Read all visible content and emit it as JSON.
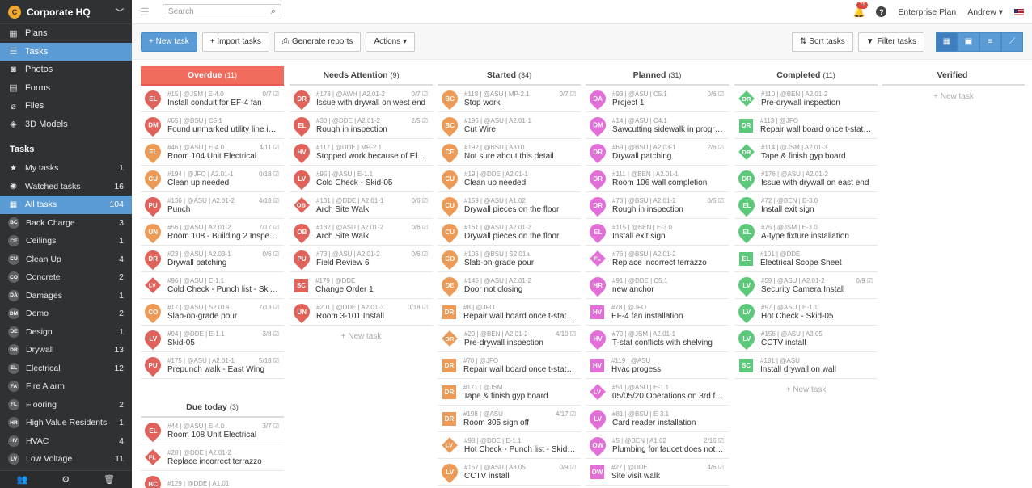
{
  "sidebar": {
    "org_name": "Corporate HQ",
    "org_initial": "C",
    "nav": [
      {
        "label": "Plans",
        "icon": "plans-icon",
        "glyph": "▦"
      },
      {
        "label": "Tasks",
        "icon": "tasks-icon",
        "glyph": "☰",
        "active": true
      },
      {
        "label": "Photos",
        "icon": "camera-icon",
        "glyph": "◙"
      },
      {
        "label": "Forms",
        "icon": "forms-icon",
        "glyph": "▤"
      },
      {
        "label": "Files",
        "icon": "paperclip-icon",
        "glyph": "⌀"
      },
      {
        "label": "3D Models",
        "icon": "cube-icon",
        "glyph": "◈"
      }
    ],
    "tasks_heading": "Tasks",
    "task_items": [
      {
        "label": "My tasks",
        "count": "1",
        "glyph": "★"
      },
      {
        "label": "Watched tasks",
        "count": "16",
        "glyph": "◉"
      },
      {
        "label": "All tasks",
        "count": "104",
        "glyph": "▦",
        "active": true
      },
      {
        "abbr": "BC",
        "label": "Back Charge",
        "count": "3"
      },
      {
        "abbr": "CE",
        "label": "Ceilings",
        "count": "1"
      },
      {
        "abbr": "CU",
        "label": "Clean Up",
        "count": "4"
      },
      {
        "abbr": "CO",
        "label": "Concrete",
        "count": "2"
      },
      {
        "abbr": "DA",
        "label": "Damages",
        "count": "1"
      },
      {
        "abbr": "DM",
        "label": "Demo",
        "count": "2"
      },
      {
        "abbr": "DE",
        "label": "Design",
        "count": "1"
      },
      {
        "abbr": "DR",
        "label": "Drywall",
        "count": "13"
      },
      {
        "abbr": "EL",
        "label": "Electrical",
        "count": "12"
      },
      {
        "abbr": "FA",
        "label": "Fire Alarm",
        "count": ""
      },
      {
        "abbr": "FL",
        "label": "Flooring",
        "count": "2"
      },
      {
        "abbr": "HR",
        "label": "High Value Residents",
        "count": "1"
      },
      {
        "abbr": "HV",
        "label": "HVAC",
        "count": "4"
      },
      {
        "abbr": "LV",
        "label": "Low Voltage",
        "count": "11"
      }
    ]
  },
  "topbar": {
    "search_placeholder": "Search",
    "notifications": "75",
    "plan": "Enterprise Plan",
    "user": "Andrew"
  },
  "toolbar": {
    "new_task": "+ New task",
    "import": "+ Import tasks",
    "reports": "Generate reports",
    "actions": "Actions ▾",
    "sort": "⇅ Sort tasks",
    "filter": "Filter tasks"
  },
  "colors": {
    "EL": "#e0625a",
    "DM": "#e0625a",
    "CU": "#ec9a55",
    "PU": "#e0625a",
    "UN": "#ec9a55",
    "DR": "#e0625a",
    "LV": "#e0625a",
    "CO": "#ec9a55",
    "FL": "#e0625a",
    "HV": "#e0625a",
    "OB": "#e0625a",
    "SC": "#e0625a",
    "BC": "#ec9a55",
    "CE": "#ec9a55",
    "DE": "#ec9a55",
    "DA": "#e26fd8",
    "HR": "#e26fd8",
    "OW": "#e26fd8",
    "LV2": "#e26fd8"
  },
  "columns": [
    {
      "title": "Overdue",
      "count": "(11)",
      "cards": [
        {
          "abbr": "EL",
          "shape": "pin",
          "color": "#e0625a",
          "meta": "#15 | @JSM | E-4.0",
          "prog": "0/7",
          "title": "Install conduit for EF-4 fan"
        },
        {
          "abbr": "DM",
          "shape": "pin",
          "color": "#e0625a",
          "meta": "#65 | @BSU | C5.1",
          "prog": "",
          "title": "Found unmarked utility line in road"
        },
        {
          "abbr": "EL",
          "shape": "pin",
          "color": "#ec9a55",
          "meta": "#46 | @ASU | E-4.0",
          "prog": "4/11",
          "title": "Room 104 Unit Electrical"
        },
        {
          "abbr": "CU",
          "shape": "pin",
          "color": "#ec9a55",
          "meta": "#194 | @JFO | A2.01-1",
          "prog": "0/18",
          "title": "Clean up needed"
        },
        {
          "abbr": "PU",
          "shape": "pin",
          "color": "#e0625a",
          "meta": "#136 | @ASU | A2.01-2",
          "prog": "4/18",
          "title": "Punch"
        },
        {
          "abbr": "UN",
          "shape": "pin",
          "color": "#ec9a55",
          "meta": "#56 | @ASU | A2.01-2",
          "prog": "7/17",
          "title": "Room 108 - Building 2 Inspection"
        },
        {
          "abbr": "DR",
          "shape": "pin",
          "color": "#e0625a",
          "meta": "#23 | @ASU | A2.03-1",
          "prog": "0/6",
          "title": "Drywall patching"
        },
        {
          "abbr": "LV",
          "shape": "dia",
          "color": "#e0625a",
          "meta": "#96 | @ASU | E-1.1",
          "prog": "",
          "title": "Cold Check - Punch list - Skid-05"
        },
        {
          "abbr": "CO",
          "shape": "pin",
          "color": "#ec9a55",
          "meta": "#17 | @ASU | S2.01a",
          "prog": "7/13",
          "title": "Slab-on-grade pour"
        },
        {
          "abbr": "LV",
          "shape": "pin",
          "color": "#e0625a",
          "meta": "#94 | @DDE | E-1.1",
          "prog": "3/8",
          "title": "Skid-05"
        },
        {
          "abbr": "PU",
          "shape": "pin",
          "color": "#e0625a",
          "meta": "#175 | @ASU | A2.01-1",
          "prog": "5/18",
          "title": "Prepunch walk - East Wing"
        }
      ]
    },
    {
      "title": "Needs Attention",
      "count": "(9)",
      "cards": [
        {
          "abbr": "DR",
          "shape": "pin",
          "color": "#e0625a",
          "meta": "#178 | @AWH | A2.01-2",
          "prog": "0/7",
          "title": "Issue with drywall on west end"
        },
        {
          "abbr": "EL",
          "shape": "pin",
          "color": "#e0625a",
          "meta": "#30 | @DDE | A2.01-2",
          "prog": "2/5",
          "title": "Rough in inspection"
        },
        {
          "abbr": "HV",
          "shape": "pin",
          "color": "#e0625a",
          "meta": "#117 | @DDE | MP-2.1",
          "prog": "",
          "title": "Stopped work because of Electric..."
        },
        {
          "abbr": "LV",
          "shape": "pin",
          "color": "#e0625a",
          "meta": "#95 | @ASU | E-1.1",
          "prog": "",
          "title": "Cold Check - Skid-05"
        },
        {
          "abbr": "OB",
          "shape": "dia",
          "color": "#e0625a",
          "meta": "#131 | @DDE | A2.01-1",
          "prog": "0/6",
          "title": "Arch Site Walk"
        },
        {
          "abbr": "OB",
          "shape": "pin",
          "color": "#e0625a",
          "meta": "#132 | @ASU | A2.01-2",
          "prog": "0/6",
          "title": "Arch Site Walk"
        },
        {
          "abbr": "PU",
          "shape": "pin",
          "color": "#e0625a",
          "meta": "#73 | @ASU | A2.01-2",
          "prog": "0/6",
          "title": "Field Review 6"
        },
        {
          "abbr": "SC",
          "shape": "sq",
          "color": "#e0625a",
          "meta": "#179 | @DDE",
          "prog": "",
          "title": "Change Order 1"
        },
        {
          "abbr": "UN",
          "shape": "pin",
          "color": "#e0625a",
          "meta": "#201 | @DDE | A2.01-3",
          "prog": "0/18",
          "title": "Room 3-101 Install"
        }
      ]
    },
    {
      "title": "Started",
      "count": "(34)",
      "cards": [
        {
          "abbr": "BC",
          "shape": "pin",
          "color": "#ec9a55",
          "meta": "#118 | @ASU | MP-2.1",
          "prog": "0/7",
          "title": "Stop work"
        },
        {
          "abbr": "BC",
          "shape": "pin",
          "color": "#ec9a55",
          "meta": "#196 | @ASU | A2.01-1",
          "prog": "",
          "title": "Cut Wire"
        },
        {
          "abbr": "CE",
          "shape": "pin",
          "color": "#ec9a55",
          "meta": "#192 | @BSU | A3.01",
          "prog": "",
          "title": "Not sure about this detail"
        },
        {
          "abbr": "CU",
          "shape": "pin",
          "color": "#ec9a55",
          "meta": "#19 | @DDE | A2.01-1",
          "prog": "",
          "title": "Clean up needed"
        },
        {
          "abbr": "CU",
          "shape": "pin",
          "color": "#ec9a55",
          "meta": "#159 | @ASU | A1.02",
          "prog": "",
          "title": "Drywall pieces on the floor"
        },
        {
          "abbr": "CU",
          "shape": "pin",
          "color": "#ec9a55",
          "meta": "#161 | @ASU | A2.01-2",
          "prog": "",
          "title": "Drywall pieces on the floor"
        },
        {
          "abbr": "CO",
          "shape": "pin",
          "color": "#ec9a55",
          "meta": "#106 | @BSU | S2.01a",
          "prog": "",
          "title": "Slab-on-grade pour"
        },
        {
          "abbr": "DE",
          "shape": "pin",
          "color": "#ec9a55",
          "meta": "#145 | @ASU | A2.01-2",
          "prog": "",
          "title": "Door not closing"
        },
        {
          "abbr": "DR",
          "shape": "sq",
          "color": "#ec9a55",
          "meta": "#8 | @JFO",
          "prog": "",
          "title": "Repair wall board once t-stat is m..."
        },
        {
          "abbr": "DR",
          "shape": "dia",
          "color": "#ec9a55",
          "meta": "#29 | @BEN | A2.01-2",
          "prog": "4/10",
          "title": "Pre-drywall inspection"
        },
        {
          "abbr": "DR",
          "shape": "sq",
          "color": "#ec9a55",
          "meta": "#70 | @JFO",
          "prog": "",
          "title": "Repair wall board once t-stat is m..."
        },
        {
          "abbr": "DR",
          "shape": "sq",
          "color": "#ec9a55",
          "meta": "#171 | @JSM",
          "prog": "",
          "title": "Tape & finish gyp board"
        },
        {
          "abbr": "DR",
          "shape": "sq",
          "color": "#ec9a55",
          "meta": "#198 | @ASU",
          "prog": "4/17",
          "title": "Room 305 sign off"
        },
        {
          "abbr": "LV",
          "shape": "dia",
          "color": "#ec9a55",
          "meta": "#98 | @DDE | E-1.1",
          "prog": "",
          "title": "Hot Check - Punch list - Skid-05"
        },
        {
          "abbr": "LV",
          "shape": "pin",
          "color": "#ec9a55",
          "meta": "#157 | @ASU | A3.05",
          "prog": "0/9",
          "title": "CCTV install"
        }
      ]
    },
    {
      "title": "Planned",
      "count": "(31)",
      "cards": [
        {
          "abbr": "DA",
          "shape": "pin",
          "color": "#e26fd8",
          "meta": "#93 | @ASU | C5.1",
          "prog": "0/6",
          "title": "Project 1"
        },
        {
          "abbr": "DM",
          "shape": "pin",
          "color": "#e26fd8",
          "meta": "#14 | @ASU | C4.1",
          "prog": "",
          "title": "Sawcutting sidewalk in progress"
        },
        {
          "abbr": "DR",
          "shape": "pin",
          "color": "#e26fd8",
          "meta": "#69 | @BSU | A2.03-1",
          "prog": "2/6",
          "title": "Drywall patching"
        },
        {
          "abbr": "DR",
          "shape": "pin",
          "color": "#e26fd8",
          "meta": "#111 | @BEN | A2.01-1",
          "prog": "",
          "title": "Room 106 wall completion"
        },
        {
          "abbr": "DR",
          "shape": "pin",
          "color": "#e26fd8",
          "meta": "#73 | @BSU | A2.01-2",
          "prog": "0/5",
          "title": "Rough in inspection"
        },
        {
          "abbr": "EL",
          "shape": "pin",
          "color": "#e26fd8",
          "meta": "#115 | @BEN | E-3.0",
          "prog": "",
          "title": "Install exit sign"
        },
        {
          "abbr": "FL",
          "shape": "dia",
          "color": "#e26fd8",
          "meta": "#76 | @BSU | A2.01-2",
          "prog": "",
          "title": "Replace incorrect terrazzo"
        },
        {
          "abbr": "HR",
          "shape": "pin",
          "color": "#e26fd8",
          "meta": "#91 | @DDE | C5.1",
          "prog": "",
          "title": "new anchor"
        },
        {
          "abbr": "HV",
          "shape": "sq",
          "color": "#e26fd8",
          "meta": "#78 | @JFO",
          "prog": "",
          "title": "EF-4 fan installation"
        },
        {
          "abbr": "HV",
          "shape": "pin",
          "color": "#e26fd8",
          "meta": "#79 | @JSM | A2.01-1",
          "prog": "",
          "title": "T-stat conflicts with shelving"
        },
        {
          "abbr": "HV",
          "shape": "sq",
          "color": "#e26fd8",
          "meta": "#119 | @ASU",
          "prog": "",
          "title": "Hvac progess"
        },
        {
          "abbr": "LV",
          "shape": "dia",
          "color": "#e26fd8",
          "meta": "#51 | @ASU | E-1.1",
          "prog": "",
          "title": "05/05/20 Operations on 3rd floor"
        },
        {
          "abbr": "LV",
          "shape": "pin",
          "color": "#e26fd8",
          "meta": "#81 | @BSU | E-3.1",
          "prog": "",
          "title": "Card reader installation"
        },
        {
          "abbr": "OW",
          "shape": "pin",
          "color": "#e26fd8",
          "meta": "#5 | @BEN | A1.02",
          "prog": "2/16",
          "title": "Plumbing for faucet does not alig..."
        },
        {
          "abbr": "OW",
          "shape": "sq",
          "color": "#e26fd8",
          "meta": "#27 | @DDE",
          "prog": "4/6",
          "title": "Site visit walk"
        }
      ]
    },
    {
      "title": "Completed",
      "count": "(11)",
      "cards": [
        {
          "abbr": "DR",
          "shape": "dia",
          "color": "#5cc87a",
          "meta": "#110 | @BEN | A2.01-2",
          "prog": "",
          "title": "Pre-drywall inspection"
        },
        {
          "abbr": "DR",
          "shape": "sq",
          "color": "#5cc87a",
          "meta": "#113 | @JFO",
          "prog": "",
          "title": "Repair wall board once t-stat is m..."
        },
        {
          "abbr": "DR",
          "shape": "dia",
          "color": "#5cc87a",
          "meta": "#114 | @JSM | A2.01-3",
          "prog": "",
          "title": "Tape & finish gyp board"
        },
        {
          "abbr": "DR",
          "shape": "pin",
          "color": "#5cc87a",
          "meta": "#176 | @ASU | A2.01-2",
          "prog": "",
          "title": "Issue with drywall on east end"
        },
        {
          "abbr": "EL",
          "shape": "pin",
          "color": "#5cc87a",
          "meta": "#72 | @BEN | E-3.0",
          "prog": "",
          "title": "Install exit sign"
        },
        {
          "abbr": "EL",
          "shape": "pin",
          "color": "#5cc87a",
          "meta": "#75 | @JSM | E-3.0",
          "prog": "",
          "title": "A-type fixture installation"
        },
        {
          "abbr": "EL",
          "shape": "sq",
          "color": "#5cc87a",
          "meta": "#101 | @DDE",
          "prog": "",
          "title": "Electrical Scope Sheet"
        },
        {
          "abbr": "LV",
          "shape": "pin",
          "color": "#5cc87a",
          "meta": "#59 | @ASU | A2.01-2",
          "prog": "0/9",
          "title": "Security Camera Install"
        },
        {
          "abbr": "LV",
          "shape": "pin",
          "color": "#5cc87a",
          "meta": "#97 | @ASU | E-1.1",
          "prog": "",
          "title": "Hot Check - Skid-05"
        },
        {
          "abbr": "LV",
          "shape": "pin",
          "color": "#5cc87a",
          "meta": "#156 | @ASU | A3.05",
          "prog": "",
          "title": "CCTV install"
        },
        {
          "abbr": "SC",
          "shape": "sq",
          "color": "#5cc87a",
          "meta": "#181 | @ASU",
          "prog": "",
          "title": "Install drywall on wall"
        }
      ]
    },
    {
      "title": "Verified",
      "count": "",
      "cards": []
    }
  ],
  "due_today": {
    "title": "Due today",
    "count": "(3)",
    "cards": [
      {
        "abbr": "EL",
        "shape": "pin",
        "color": "#e0625a",
        "meta": "#44 | @ASU | E-4.0",
        "prog": "3/7",
        "title": "Room 108 Unit Electrical"
      },
      {
        "abbr": "FL",
        "shape": "dia",
        "color": "#e0625a",
        "meta": "#28 | @DDE | A2.01-2",
        "prog": "",
        "title": "Replace incorrect terrazzo"
      },
      {
        "abbr": "BC",
        "shape": "pin",
        "color": "#e0625a",
        "meta": "#129 | @DDE | A1.01",
        "prog": "",
        "title": ""
      }
    ]
  },
  "new_task_label": "+ New task"
}
